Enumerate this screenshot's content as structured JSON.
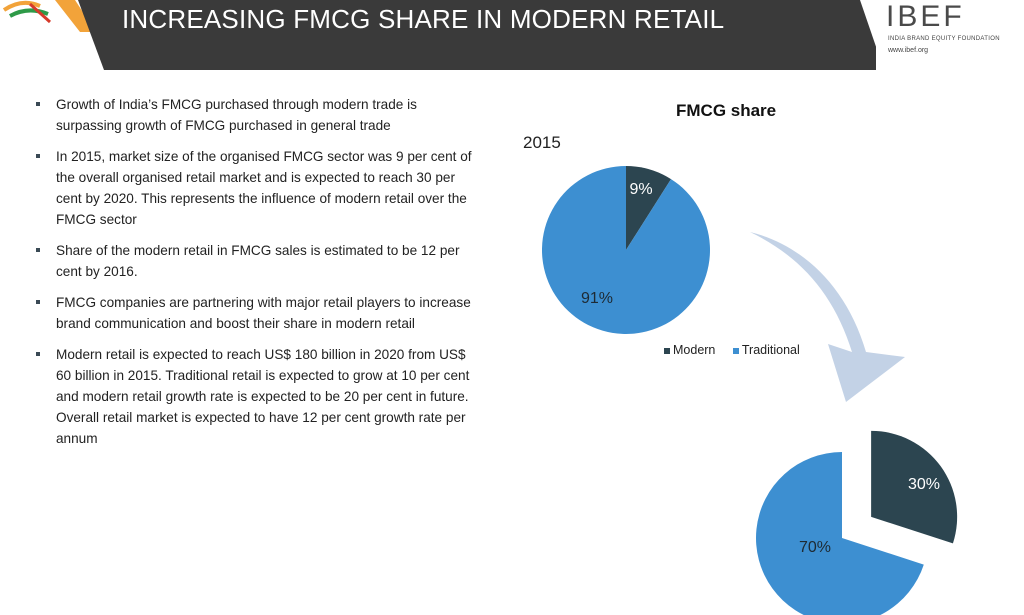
{
  "header": {
    "title": "INCREASING FMCG SHARE IN MODERN RETAIL",
    "logo_text": "IBEF",
    "logo_subtitle": "INDIA BRAND EQUITY FOUNDATION",
    "logo_url": "www.ibef.org"
  },
  "bullets": [
    "Growth of India’s FMCG purchased through modern trade is surpassing growth of FMCG purchased in general trade",
    "In 2015, market size of the organised FMCG sector was 9 per cent of the overall organised retail market and is expected to reach 30 per cent by 2020. This represents the influence of modern retail over the FMCG sector",
    "Share of the modern retail in FMCG sales is estimated to be 12 per cent by 2016.",
    "FMCG companies are partnering with major retail players to increase brand communication and boost their share in modern retail",
    "Modern retail is expected to reach US$ 180 billion in 2020 from US$ 60 billion in 2015. Traditional retail is expected to grow at 10 per cent and modern retail growth rate is expected to be 20 per cent in future. Overall retail market is expected to have 12 per cent growth rate per annum"
  ],
  "colors": {
    "modern": "#2c4550",
    "traditional": "#3d8fd1",
    "header_bg": "#3a3a3a",
    "accent": "#f2a33a",
    "arrow": "#c3d2e6"
  },
  "chart_data": [
    {
      "type": "pie",
      "title": "FMCG share",
      "year": "2015",
      "categories": [
        "Modern",
        "Traditional"
      ],
      "values": [
        9,
        91
      ],
      "labels": [
        "9%",
        "91%"
      ],
      "legend": [
        "Modern",
        "Traditional"
      ],
      "legend_position": "bottom"
    },
    {
      "type": "pie",
      "categories": [
        "Modern",
        "Traditional"
      ],
      "values": [
        30,
        70
      ],
      "labels": [
        "30%",
        "70%"
      ],
      "exploded": "Modern"
    }
  ]
}
